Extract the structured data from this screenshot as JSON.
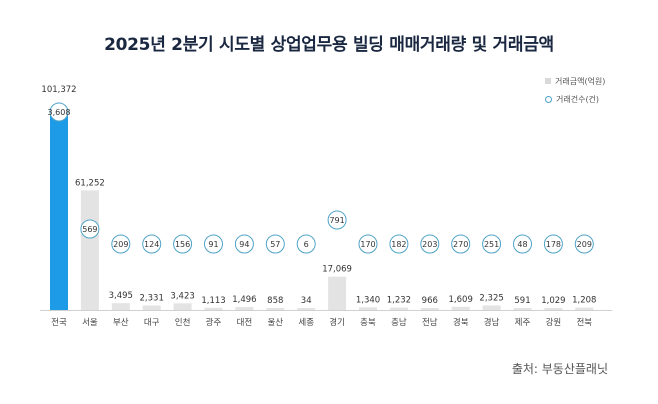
{
  "chart_data": {
    "type": "bar",
    "title": "2025년 2분기 시도별 상업업무용 빌딩 매매거래량 및 거래금액",
    "categories": [
      "전국",
      "서울",
      "부산",
      "대구",
      "인천",
      "광주",
      "대전",
      "울산",
      "세종",
      "경기",
      "충북",
      "충남",
      "전남",
      "경북",
      "경남",
      "제주",
      "강원",
      "전북"
    ],
    "series": [
      {
        "name": "거래금액(억원)",
        "values": [
          101372,
          61252,
          3495,
          2331,
          3423,
          1113,
          1496,
          858,
          34,
          17069,
          1340,
          1232,
          966,
          1609,
          2325,
          591,
          1029,
          1208
        ],
        "labels": [
          "101,372",
          "61,252",
          "3,495",
          "2,331",
          "3,423",
          "1,113",
          "1,496",
          "858",
          "34",
          "17,069",
          "1,340",
          "1,232",
          "966",
          "1,609",
          "2,325",
          "591",
          "1,029",
          "1,208"
        ]
      },
      {
        "name": "거래건수(건)",
        "values": [
          3608,
          569,
          209,
          124,
          156,
          91,
          94,
          57,
          6,
          791,
          170,
          182,
          203,
          270,
          251,
          48,
          178,
          209
        ],
        "labels": [
          "3,608",
          "569",
          "209",
          "124",
          "156",
          "91",
          "94",
          "57",
          "6",
          "791",
          "170",
          "182",
          "203",
          "270",
          "251",
          "48",
          "178",
          "209"
        ]
      }
    ],
    "highlight_color": "#1e9be6",
    "bar_color": "#e3e3e3",
    "circle_color": "#4fa3c8",
    "legend_position": "top-right",
    "grid": false
  },
  "source": "출처: 부동산플래닛"
}
